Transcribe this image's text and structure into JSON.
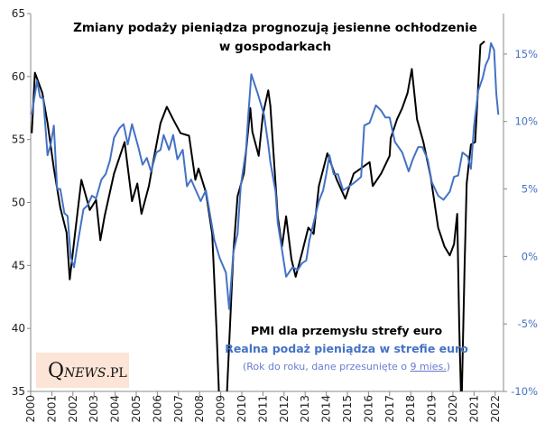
{
  "chart_data": {
    "type": "line",
    "title_line1": "Zmiany podaży pieniądza prognozują jesienne ochłodzenie",
    "title_line2": "w gospodarkach",
    "left_axis": {
      "min": 35,
      "max": 65,
      "ticks": [
        "35",
        "40",
        "45",
        "50",
        "55",
        "60",
        "65"
      ]
    },
    "right_axis": {
      "min": -10,
      "max": 18,
      "ticks": [
        "-10%",
        "-5%",
        "0%",
        "5%",
        "10%",
        "15%"
      ],
      "tick_values": [
        -10,
        -5,
        0,
        5,
        10,
        15
      ]
    },
    "x_ticks": [
      "2000",
      "2001",
      "2002",
      "2003",
      "2004",
      "2005",
      "2006",
      "2007",
      "2008",
      "2009",
      "2010",
      "2011",
      "2012",
      "2013",
      "2014",
      "2015",
      "2016",
      "2017",
      "2018",
      "2019",
      "2020",
      "2021",
      "2022"
    ],
    "legend": {
      "series1": "PMI dla przemysłu strefy euro",
      "series2": "Realna podaż pieniądza w strefie euro",
      "note_prefix": "(Rok do roku, dane przesunięte o ",
      "note_link": "9 mies.",
      "note_suffix": ")"
    },
    "logo_text": "QNEWS.PL",
    "colors": {
      "pmi": "#000000",
      "money": "#4472c4",
      "logo_bg": "#fce4d6"
    },
    "series": [
      {
        "name": "PMI dla przemysłu strefy euro",
        "axis": "left",
        "points": [
          [
            2000.05,
            55.5
          ],
          [
            2000.2,
            60.3
          ],
          [
            2000.55,
            58.7
          ],
          [
            2000.8,
            56.3
          ],
          [
            2001.1,
            52.7
          ],
          [
            2001.4,
            49.6
          ],
          [
            2001.7,
            47.6
          ],
          [
            2001.85,
            43.9
          ],
          [
            2002.1,
            47.5
          ],
          [
            2002.4,
            51.8
          ],
          [
            2002.8,
            49.4
          ],
          [
            2003.1,
            50.2
          ],
          [
            2003.3,
            47
          ],
          [
            2003.5,
            48.9
          ],
          [
            2003.95,
            52.3
          ],
          [
            2004.45,
            54.8
          ],
          [
            2004.8,
            50.1
          ],
          [
            2005.05,
            51.5
          ],
          [
            2005.25,
            49.1
          ],
          [
            2005.6,
            51.3
          ],
          [
            2005.8,
            53.2
          ],
          [
            2006.15,
            56.3
          ],
          [
            2006.45,
            57.6
          ],
          [
            2006.75,
            56.6
          ],
          [
            2007.1,
            55.5
          ],
          [
            2007.5,
            55.3
          ],
          [
            2007.8,
            51.8
          ],
          [
            2007.95,
            52.7
          ],
          [
            2008.3,
            50.8
          ],
          [
            2008.6,
            47.5
          ],
          [
            2008.8,
            40
          ],
          [
            2008.95,
            33.5
          ],
          [
            2009.15,
            33.5
          ],
          [
            2009.3,
            35
          ],
          [
            2009.6,
            46
          ],
          [
            2009.8,
            50.5
          ],
          [
            2010.1,
            52.3
          ],
          [
            2010.4,
            57.5
          ],
          [
            2010.5,
            55.6
          ],
          [
            2010.8,
            53.7
          ],
          [
            2011.0,
            57
          ],
          [
            2011.25,
            58.9
          ],
          [
            2011.35,
            57.7
          ],
          [
            2011.7,
            48.9
          ],
          [
            2011.9,
            46.5
          ],
          [
            2012.1,
            48.9
          ],
          [
            2012.35,
            45.5
          ],
          [
            2012.55,
            44.1
          ],
          [
            2012.85,
            46
          ],
          [
            2013.15,
            48
          ],
          [
            2013.4,
            47.5
          ],
          [
            2013.65,
            51.3
          ],
          [
            2014.05,
            53.9
          ],
          [
            2014.5,
            51.8
          ],
          [
            2014.9,
            50.3
          ],
          [
            2015.3,
            52.3
          ],
          [
            2016.05,
            53.2
          ],
          [
            2016.2,
            51.3
          ],
          [
            2016.6,
            52.3
          ],
          [
            2017.0,
            53.7
          ],
          [
            2017.05,
            55.1
          ],
          [
            2017.35,
            56.6
          ],
          [
            2017.6,
            57.5
          ],
          [
            2017.85,
            58.7
          ],
          [
            2018.05,
            60.6
          ],
          [
            2018.3,
            56.6
          ],
          [
            2018.6,
            54.8
          ],
          [
            2018.95,
            52
          ],
          [
            2019.3,
            48
          ],
          [
            2019.6,
            46.5
          ],
          [
            2019.85,
            45.8
          ],
          [
            2020.05,
            46.7
          ],
          [
            2020.2,
            49.1
          ],
          [
            2020.3,
            40
          ],
          [
            2020.4,
            33.4
          ],
          [
            2020.55,
            45
          ],
          [
            2020.65,
            51.5
          ],
          [
            2020.85,
            54.6
          ],
          [
            2021.05,
            54.8
          ],
          [
            2021.3,
            62.5
          ],
          [
            2021.5,
            62.8
          ]
        ]
      },
      {
        "name": "Realna podaż pieniądza w strefie euro",
        "axis": "right",
        "points": [
          [
            2000.05,
            10.5
          ],
          [
            2000.15,
            11.5
          ],
          [
            2000.3,
            13
          ],
          [
            2000.45,
            11.8
          ],
          [
            2000.6,
            11.7
          ],
          [
            2000.8,
            7.5
          ],
          [
            2000.95,
            8.3
          ],
          [
            2001.1,
            9.7
          ],
          [
            2001.25,
            5
          ],
          [
            2001.4,
            5
          ],
          [
            2001.6,
            3.2
          ],
          [
            2001.75,
            3
          ],
          [
            2001.9,
            -0.1
          ],
          [
            2002.05,
            -0.8
          ],
          [
            2002.25,
            1.2
          ],
          [
            2002.5,
            3.5
          ],
          [
            2002.7,
            3.8
          ],
          [
            2002.9,
            4.5
          ],
          [
            2003.1,
            4.3
          ],
          [
            2003.35,
            5.7
          ],
          [
            2003.55,
            6.1
          ],
          [
            2003.75,
            7.1
          ],
          [
            2003.95,
            8.8
          ],
          [
            2004.2,
            9.5
          ],
          [
            2004.4,
            9.8
          ],
          [
            2004.6,
            8.3
          ],
          [
            2004.8,
            9.8
          ],
          [
            2005.1,
            8.1
          ],
          [
            2005.3,
            6.8
          ],
          [
            2005.5,
            7.3
          ],
          [
            2005.7,
            6.3
          ],
          [
            2005.95,
            7.7
          ],
          [
            2006.15,
            7.9
          ],
          [
            2006.3,
            9
          ],
          [
            2006.55,
            7.9
          ],
          [
            2006.75,
            9
          ],
          [
            2006.95,
            7.2
          ],
          [
            2007.2,
            7.9
          ],
          [
            2007.4,
            5.2
          ],
          [
            2007.6,
            5.7
          ],
          [
            2007.85,
            4.8
          ],
          [
            2008.05,
            4.1
          ],
          [
            2008.3,
            4.9
          ],
          [
            2008.7,
            1.2
          ],
          [
            2008.95,
            -0.1
          ],
          [
            2009.25,
            -1.2
          ],
          [
            2009.4,
            -3.9
          ],
          [
            2009.6,
            0.3
          ],
          [
            2009.8,
            1.7
          ],
          [
            2009.95,
            5.2
          ],
          [
            2010.2,
            7.9
          ],
          [
            2010.3,
            10.3
          ],
          [
            2010.45,
            13.5
          ],
          [
            2010.75,
            12.1
          ],
          [
            2011.05,
            10.5
          ],
          [
            2011.25,
            8.3
          ],
          [
            2011.35,
            7
          ],
          [
            2011.6,
            4.8
          ],
          [
            2011.7,
            2.5
          ],
          [
            2011.9,
            0.5
          ],
          [
            2012.1,
            -1.5
          ],
          [
            2012.4,
            -0.8
          ],
          [
            2012.65,
            -1
          ],
          [
            2012.85,
            -0.5
          ],
          [
            2013.05,
            -0.3
          ],
          [
            2013.2,
            1.2
          ],
          [
            2013.4,
            2.5
          ],
          [
            2013.65,
            4.1
          ],
          [
            2013.85,
            4.9
          ],
          [
            2014.0,
            6.1
          ],
          [
            2014.15,
            7.5
          ],
          [
            2014.35,
            6.1
          ],
          [
            2014.55,
            6.1
          ],
          [
            2014.8,
            4.9
          ],
          [
            2015.1,
            5.2
          ],
          [
            2015.35,
            5.5
          ],
          [
            2015.65,
            5.9
          ],
          [
            2015.8,
            9.7
          ],
          [
            2016.05,
            9.9
          ],
          [
            2016.35,
            11.2
          ],
          [
            2016.6,
            10.8
          ],
          [
            2016.8,
            10.3
          ],
          [
            2017.0,
            10.3
          ],
          [
            2017.25,
            8.5
          ],
          [
            2017.6,
            7.7
          ],
          [
            2017.9,
            6.3
          ],
          [
            2018.1,
            7.2
          ],
          [
            2018.35,
            8.1
          ],
          [
            2018.55,
            8.1
          ],
          [
            2018.8,
            7.2
          ],
          [
            2019.0,
            5.5
          ],
          [
            2019.3,
            4.5
          ],
          [
            2019.55,
            4.2
          ],
          [
            2019.85,
            4.8
          ],
          [
            2020.05,
            5.9
          ],
          [
            2020.25,
            6
          ],
          [
            2020.45,
            7.7
          ],
          [
            2020.7,
            7.4
          ],
          [
            2020.85,
            6.5
          ],
          [
            2021.0,
            9.7
          ],
          [
            2021.2,
            12.3
          ],
          [
            2021.4,
            13.2
          ],
          [
            2021.55,
            14.2
          ],
          [
            2021.7,
            14.7
          ],
          [
            2021.8,
            15.8
          ],
          [
            2021.95,
            15.3
          ],
          [
            2022.05,
            12.1
          ],
          [
            2022.15,
            10.5
          ]
        ]
      }
    ]
  }
}
